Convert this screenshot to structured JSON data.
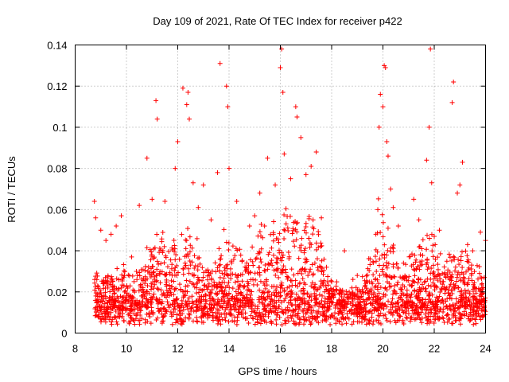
{
  "chart_data": {
    "type": "scatter",
    "title": "Day 109 of 2021, Rate Of TEC Index for receiver p422",
    "xlabel": "GPS time / hours",
    "ylabel": "ROTI / TECUs",
    "xlim": [
      8,
      24
    ],
    "ylim": [
      0,
      0.14
    ],
    "x_ticks": [
      "8",
      "10",
      "12",
      "14",
      "16",
      "18",
      "20",
      "22",
      "24"
    ],
    "y_ticks": [
      "0",
      "0.02",
      "0.04",
      "0.06",
      "0.08",
      "0.1",
      "0.12",
      "0.14"
    ],
    "grid": true,
    "marker": "+",
    "color": "#ff0000",
    "series": [
      {
        "values": [
          [
            8.75,
            0.064
          ],
          [
            8.8,
            0.056
          ],
          [
            9.0,
            0.05
          ],
          [
            9.2,
            0.045
          ],
          [
            9.4,
            0.048
          ],
          [
            9.6,
            0.052
          ],
          [
            9.8,
            0.057
          ],
          [
            10.2,
            0.037
          ],
          [
            10.5,
            0.062
          ],
          [
            10.8,
            0.085
          ],
          [
            11.0,
            0.065
          ],
          [
            11.15,
            0.113
          ],
          [
            11.2,
            0.104
          ],
          [
            11.5,
            0.064
          ],
          [
            11.9,
            0.08
          ],
          [
            12.0,
            0.093
          ],
          [
            12.2,
            0.119
          ],
          [
            12.35,
            0.111
          ],
          [
            12.4,
            0.117
          ],
          [
            12.45,
            0.104
          ],
          [
            12.6,
            0.073
          ],
          [
            12.8,
            0.061
          ],
          [
            13.0,
            0.072
          ],
          [
            13.3,
            0.055
          ],
          [
            13.55,
            0.078
          ],
          [
            13.65,
            0.131
          ],
          [
            13.9,
            0.12
          ],
          [
            13.95,
            0.11
          ],
          [
            14.0,
            0.08
          ],
          [
            14.3,
            0.064
          ],
          [
            14.8,
            0.052
          ],
          [
            15.0,
            0.057
          ],
          [
            15.2,
            0.068
          ],
          [
            15.5,
            0.085
          ],
          [
            15.8,
            0.072
          ],
          [
            16.0,
            0.129
          ],
          [
            16.05,
            0.138
          ],
          [
            16.1,
            0.117
          ],
          [
            16.15,
            0.087
          ],
          [
            16.4,
            0.075
          ],
          [
            16.6,
            0.11
          ],
          [
            16.65,
            0.105
          ],
          [
            16.8,
            0.095
          ],
          [
            17.0,
            0.077
          ],
          [
            17.2,
            0.081
          ],
          [
            17.4,
            0.088
          ],
          [
            17.6,
            0.056
          ],
          [
            17.8,
            0.032
          ],
          [
            18.0,
            0.025
          ],
          [
            18.5,
            0.04
          ],
          [
            19.0,
            0.028
          ],
          [
            19.5,
            0.036
          ],
          [
            19.8,
            0.06
          ],
          [
            19.85,
            0.1
          ],
          [
            19.9,
            0.116
          ],
          [
            20.0,
            0.11
          ],
          [
            20.05,
            0.13
          ],
          [
            20.1,
            0.129
          ],
          [
            20.15,
            0.093
          ],
          [
            20.2,
            0.086
          ],
          [
            20.3,
            0.07
          ],
          [
            20.4,
            0.061
          ],
          [
            20.6,
            0.052
          ],
          [
            20.8,
            0.034
          ],
          [
            21.2,
            0.065
          ],
          [
            21.4,
            0.055
          ],
          [
            21.7,
            0.084
          ],
          [
            21.8,
            0.1
          ],
          [
            21.85,
            0.138
          ],
          [
            21.9,
            0.073
          ],
          [
            22.0,
            0.047
          ],
          [
            22.2,
            0.05
          ],
          [
            22.7,
            0.112
          ],
          [
            22.75,
            0.122
          ],
          [
            22.9,
            0.068
          ],
          [
            23.0,
            0.072
          ],
          [
            23.1,
            0.083
          ],
          [
            23.3,
            0.043
          ],
          [
            23.5,
            0.04
          ],
          [
            23.8,
            0.049
          ],
          [
            24.0,
            0.045
          ]
        ]
      }
    ]
  }
}
